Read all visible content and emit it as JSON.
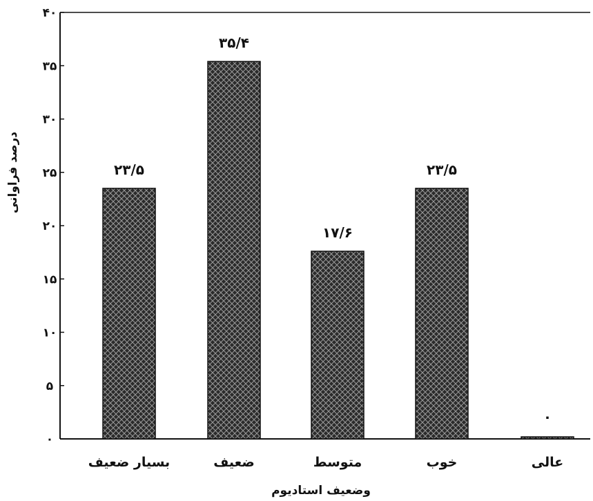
{
  "chart_data": {
    "type": "bar",
    "categories": [
      "بسیار ضعیف",
      "ضعیف",
      "متوسط",
      "خوب",
      "عالی"
    ],
    "values": [
      23.5,
      35.4,
      17.6,
      23.5,
      0
    ],
    "data_labels": [
      "۲۳/۵",
      "۳۵/۴",
      "۱۷/۶",
      "۲۳/۵",
      "۰"
    ],
    "xlabel": "وضعیف استادیوم",
    "ylabel": "درصد فراوانی",
    "ylim": [
      0,
      40
    ],
    "yticks": [
      0,
      5,
      10,
      15,
      20,
      25,
      30,
      35,
      40
    ],
    "ytick_labels": [
      "۰",
      "۵",
      "۱۰",
      "۱۵",
      "۲۰",
      "۲۵",
      "۳۰",
      "۳۵",
      "۴۰"
    ],
    "grid": false,
    "colors": {
      "bar": "#2b2b2b",
      "hatch": "#9a9a9a",
      "axis": "#111111"
    }
  }
}
